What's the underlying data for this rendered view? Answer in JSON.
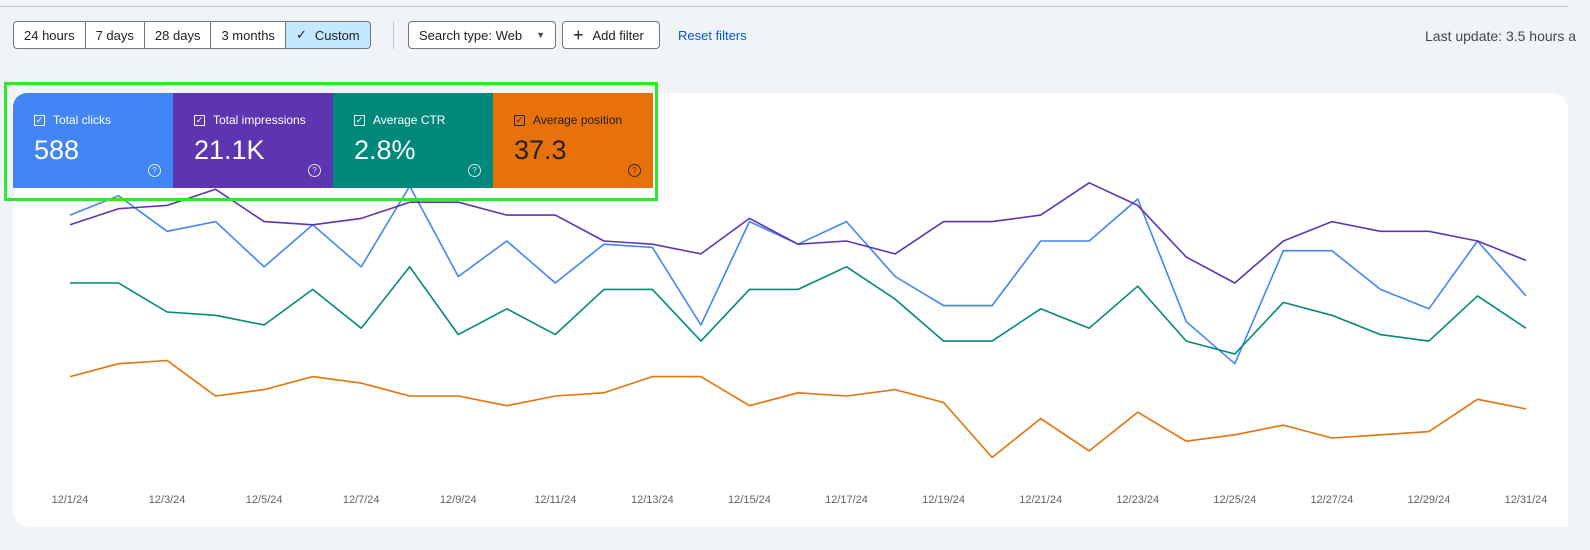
{
  "filters": {
    "date_ranges": [
      {
        "label": "24 hours",
        "selected": false
      },
      {
        "label": "7 days",
        "selected": false
      },
      {
        "label": "28 days",
        "selected": false
      },
      {
        "label": "3 months",
        "selected": false
      },
      {
        "label": "Custom",
        "selected": true
      }
    ],
    "search_type_label": "Search type: Web",
    "add_filter_label": "Add filter",
    "reset_label": "Reset filters"
  },
  "last_update": "Last update: 3.5 hours a",
  "metrics": [
    {
      "label": "Total clicks",
      "value": "588",
      "color": "#4285f4",
      "text_color": "#ffffff"
    },
    {
      "label": "Total impressions",
      "value": "21.1K",
      "color": "#5e35b1",
      "text_color": "#ffffff"
    },
    {
      "label": "Average CTR",
      "value": "2.8%",
      "color": "#00897b",
      "text_color": "#ffffff"
    },
    {
      "label": "Average position",
      "value": "37.3",
      "color": "#e8710a",
      "text_color": "#202124"
    }
  ],
  "chart_data": {
    "type": "line",
    "x": [
      "12/1/24",
      "12/2/24",
      "12/3/24",
      "12/4/24",
      "12/5/24",
      "12/6/24",
      "12/7/24",
      "12/8/24",
      "12/9/24",
      "12/10/24",
      "12/11/24",
      "12/12/24",
      "12/13/24",
      "12/14/24",
      "12/15/24",
      "12/16/24",
      "12/17/24",
      "12/18/24",
      "12/19/24",
      "12/20/24",
      "12/21/24",
      "12/22/24",
      "12/23/24",
      "12/24/24",
      "12/25/24",
      "12/26/24",
      "12/27/24",
      "12/28/24",
      "12/29/24",
      "12/30/24",
      "12/31/24"
    ],
    "x_tick_labels": [
      "12/1/24",
      "12/3/24",
      "12/5/24",
      "12/7/24",
      "12/9/24",
      "12/11/24",
      "12/13/24",
      "12/15/24",
      "12/17/24",
      "12/19/24",
      "12/21/24",
      "12/23/24",
      "12/25/24",
      "12/27/24",
      "12/29/24",
      "12/31/24"
    ],
    "y_axis_labels_shown": false,
    "grid": false,
    "normalized_scale": [
      0,
      100
    ],
    "series": [
      {
        "name": "Total clicks",
        "color": "#4285f4",
        "values": [
          82,
          88,
          77,
          80,
          66,
          79,
          66,
          91,
          63,
          74,
          61,
          73,
          72,
          48,
          80,
          73,
          80,
          63,
          54,
          54,
          74,
          74,
          87,
          49,
          36,
          71,
          71,
          59,
          53,
          74,
          57
        ]
      },
      {
        "name": "Total impressions",
        "color": "#5e35b1",
        "values": [
          79,
          84,
          85,
          90,
          80,
          79,
          81,
          86,
          86,
          82,
          82,
          74,
          73,
          70,
          81,
          73,
          74,
          70,
          80,
          80,
          82,
          92,
          85,
          69,
          61,
          74,
          80,
          77,
          77,
          74,
          68
        ]
      },
      {
        "name": "Average CTR",
        "color": "#00897b",
        "values": [
          61,
          61,
          52,
          51,
          48,
          59,
          47,
          66,
          45,
          53,
          45,
          59,
          59,
          43,
          59,
          59,
          66,
          56,
          43,
          43,
          53,
          47,
          60,
          43,
          39,
          55,
          51,
          45,
          43,
          57,
          47
        ]
      },
      {
        "name": "Average position",
        "color": "#e8710a",
        "values": [
          32,
          36,
          37,
          26,
          28,
          32,
          30,
          26,
          26,
          23,
          26,
          27,
          32,
          32,
          23,
          27,
          26,
          28,
          24,
          7,
          19,
          9,
          21,
          12,
          14,
          17,
          13,
          14,
          15,
          25,
          22
        ]
      }
    ]
  }
}
